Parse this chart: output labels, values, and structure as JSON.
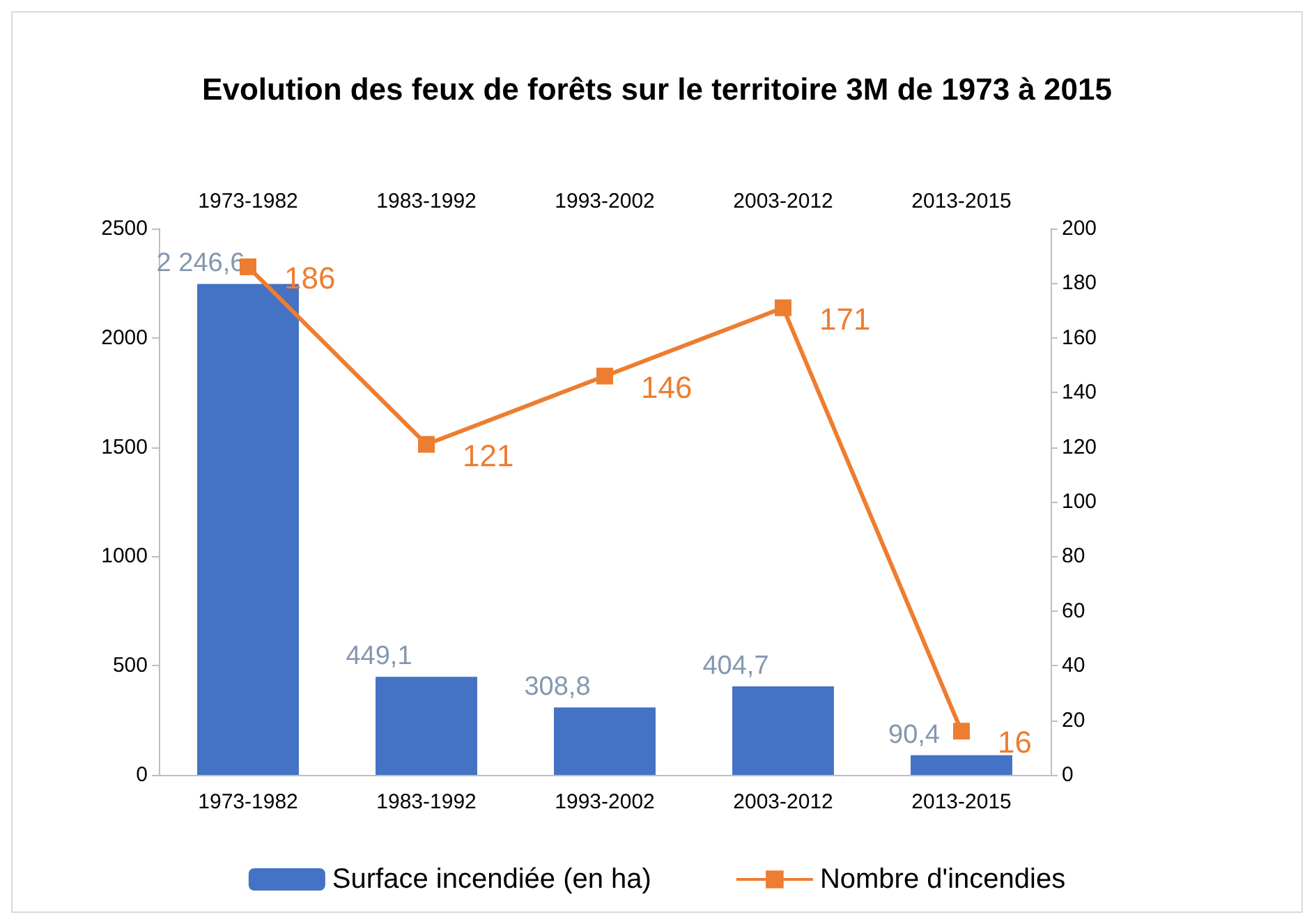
{
  "chart_data": {
    "type": "bar",
    "title": "Evolution des feux de forêts sur le territoire 3M de 1973 à 2015",
    "categories": [
      "1973-1982",
      "1983-1992",
      "1993-2002",
      "2003-2012",
      "2013-2015"
    ],
    "series": [
      {
        "name": "Surface incendiée (en ha)",
        "color": "#4472c4",
        "values": [
          2246.6,
          449.1,
          308.8,
          404.7,
          90.4
        ],
        "value_labels": [
          "2 246,6",
          "449,1",
          "308,8",
          "404,7",
          "90,4"
        ]
      },
      {
        "name": "Nombre d'incendies",
        "type": "line",
        "axis": "y2",
        "color": "#ed7d31",
        "marker": "square",
        "values": [
          186,
          121,
          146,
          171,
          16
        ],
        "value_labels": [
          "186",
          "121",
          "146",
          "171",
          "16"
        ]
      }
    ],
    "ylim": [
      0,
      2500
    ],
    "yticks": [
      0,
      500,
      1000,
      1500,
      2000,
      2500
    ],
    "y2lim": [
      0,
      200
    ],
    "y2ticks": [
      0,
      20,
      40,
      60,
      80,
      100,
      120,
      140,
      160,
      180,
      200
    ],
    "grid": false,
    "legend": "bottom"
  }
}
